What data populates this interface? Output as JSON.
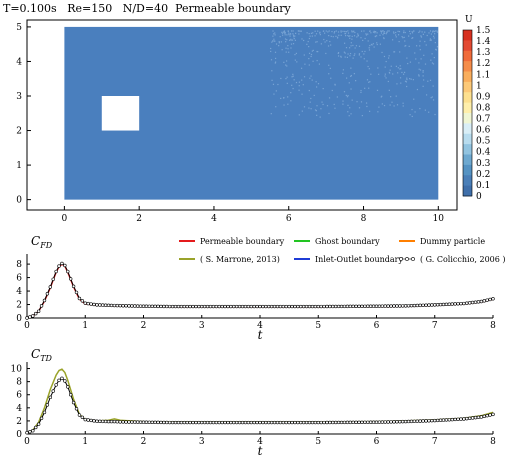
{
  "header": {
    "time": "T=0.100s",
    "re": "Re=150",
    "nd": "N/D=40",
    "case": "Permeable boundary"
  },
  "colorbar": {
    "label": "U",
    "ticks": [
      "1.5",
      "1.4",
      "1.3",
      "1.2",
      "1.1",
      "1",
      "0.9",
      "0.8",
      "0.7",
      "0.6",
      "0.5",
      "0.4",
      "0.3",
      "0.2",
      "0.1",
      "0"
    ],
    "colors": [
      "#d7301f",
      "#e34a33",
      "#f06b3a",
      "#f58d4a",
      "#f9ae5d",
      "#fcc978",
      "#fde08f",
      "#ffefab",
      "#f0f6d4",
      "#d9eef6",
      "#b8dcee",
      "#92c4e0",
      "#6ea9d0",
      "#5593c3",
      "#4a7fb8",
      "#3f6faa"
    ]
  },
  "chart_data": [
    {
      "type": "heatmap",
      "xlim": [
        -1,
        10.5
      ],
      "ylim": [
        -0.3,
        5.2
      ],
      "xticks": [
        0,
        2,
        4,
        6,
        8,
        10
      ],
      "yticks": [
        0,
        1,
        2,
        3,
        4,
        5
      ],
      "domain_x": [
        0,
        10
      ],
      "domain_y": [
        0,
        5
      ],
      "obstacle": {
        "x": [
          1,
          2
        ],
        "y": [
          2,
          3
        ]
      },
      "field_color": "#4a7fbe",
      "field_value": 0.1
    },
    {
      "type": "line",
      "ylabel": "C_FD",
      "xlabel": "t",
      "xlim": [
        0,
        8
      ],
      "ylim": [
        0,
        9.5
      ],
      "xticks": [
        0,
        1,
        2,
        3,
        4,
        5,
        6,
        7,
        8
      ],
      "yticks": [
        0,
        2,
        4,
        6,
        8
      ],
      "legend": [
        {
          "name": "Permeable boundary",
          "color": "#e41a1c",
          "style": "line"
        },
        {
          "name": "Ghost boundary",
          "color": "#22c422",
          "style": "line"
        },
        {
          "name": "Dummy particle",
          "color": "#ff7f00",
          "style": "line"
        },
        {
          "name": "( S. Marrone, 2013)",
          "color": "#9aa32a",
          "style": "line"
        },
        {
          "name": "Inlet-Outlet boundary",
          "color": "#1f3cd6",
          "style": "line"
        },
        {
          "name": "( G. Colicchio, 2006 )",
          "color": "#000000",
          "style": "circle"
        }
      ],
      "x": [
        0,
        0.1,
        0.2,
        0.3,
        0.4,
        0.5,
        0.55,
        0.6,
        0.65,
        0.7,
        0.8,
        0.9,
        1.0,
        1.2,
        1.5,
        2,
        2.5,
        3,
        4,
        5,
        6,
        6.5,
        7,
        7.5,
        7.8,
        8
      ],
      "series": [
        {
          "name": "Permeable boundary",
          "values": [
            0,
            0.3,
            1.0,
            2.5,
            4.5,
            6.8,
            7.6,
            8.0,
            7.7,
            6.8,
            4.6,
            2.8,
            2.1,
            1.9,
            1.8,
            1.7,
            1.65,
            1.65,
            1.65,
            1.65,
            1.7,
            1.75,
            1.9,
            2.1,
            2.4,
            2.8
          ]
        },
        {
          "name": "( G. Colicchio, 2006 )",
          "values": [
            0,
            0.3,
            1.0,
            2.6,
            4.6,
            6.9,
            7.7,
            8.1,
            7.8,
            6.9,
            4.7,
            2.9,
            2.2,
            1.95,
            1.85,
            1.75,
            1.7,
            1.7,
            1.7,
            1.7,
            1.75,
            1.8,
            1.95,
            2.15,
            2.45,
            2.85
          ]
        }
      ]
    },
    {
      "type": "line",
      "ylabel": "C_TD",
      "xlabel": "t",
      "xlim": [
        0,
        8
      ],
      "ylim": [
        0,
        11
      ],
      "xticks": [
        0,
        1,
        2,
        3,
        4,
        5,
        6,
        7,
        8
      ],
      "yticks": [
        0,
        2,
        4,
        6,
        8,
        10
      ],
      "x": [
        0,
        0.1,
        0.2,
        0.3,
        0.4,
        0.5,
        0.55,
        0.6,
        0.65,
        0.7,
        0.8,
        0.9,
        1.0,
        1.2,
        1.4,
        1.5,
        1.6,
        2,
        2.5,
        3,
        4,
        5,
        6,
        6.5,
        7,
        7.5,
        7.8,
        8
      ],
      "series": [
        {
          "name": "( S. Marrone, 2013)",
          "values": [
            0.2,
            0.6,
            1.8,
            4.0,
            6.8,
            9.0,
            9.7,
            9.9,
            9.4,
            8.2,
            5.3,
            3.0,
            2.2,
            2.0,
            2.1,
            2.3,
            2.1,
            1.9,
            1.85,
            1.85,
            1.85,
            1.85,
            1.9,
            2.0,
            2.15,
            2.4,
            2.8,
            3.3
          ]
        },
        {
          "name": "( G. Colicchio, 2006 )",
          "values": [
            0.2,
            0.5,
            1.5,
            3.3,
            5.6,
            7.5,
            8.2,
            8.5,
            8.1,
            7.2,
            4.8,
            2.9,
            2.2,
            1.95,
            1.9,
            1.9,
            1.85,
            1.8,
            1.75,
            1.75,
            1.75,
            1.75,
            1.8,
            1.9,
            2.05,
            2.3,
            2.6,
            3.0
          ]
        }
      ]
    }
  ]
}
